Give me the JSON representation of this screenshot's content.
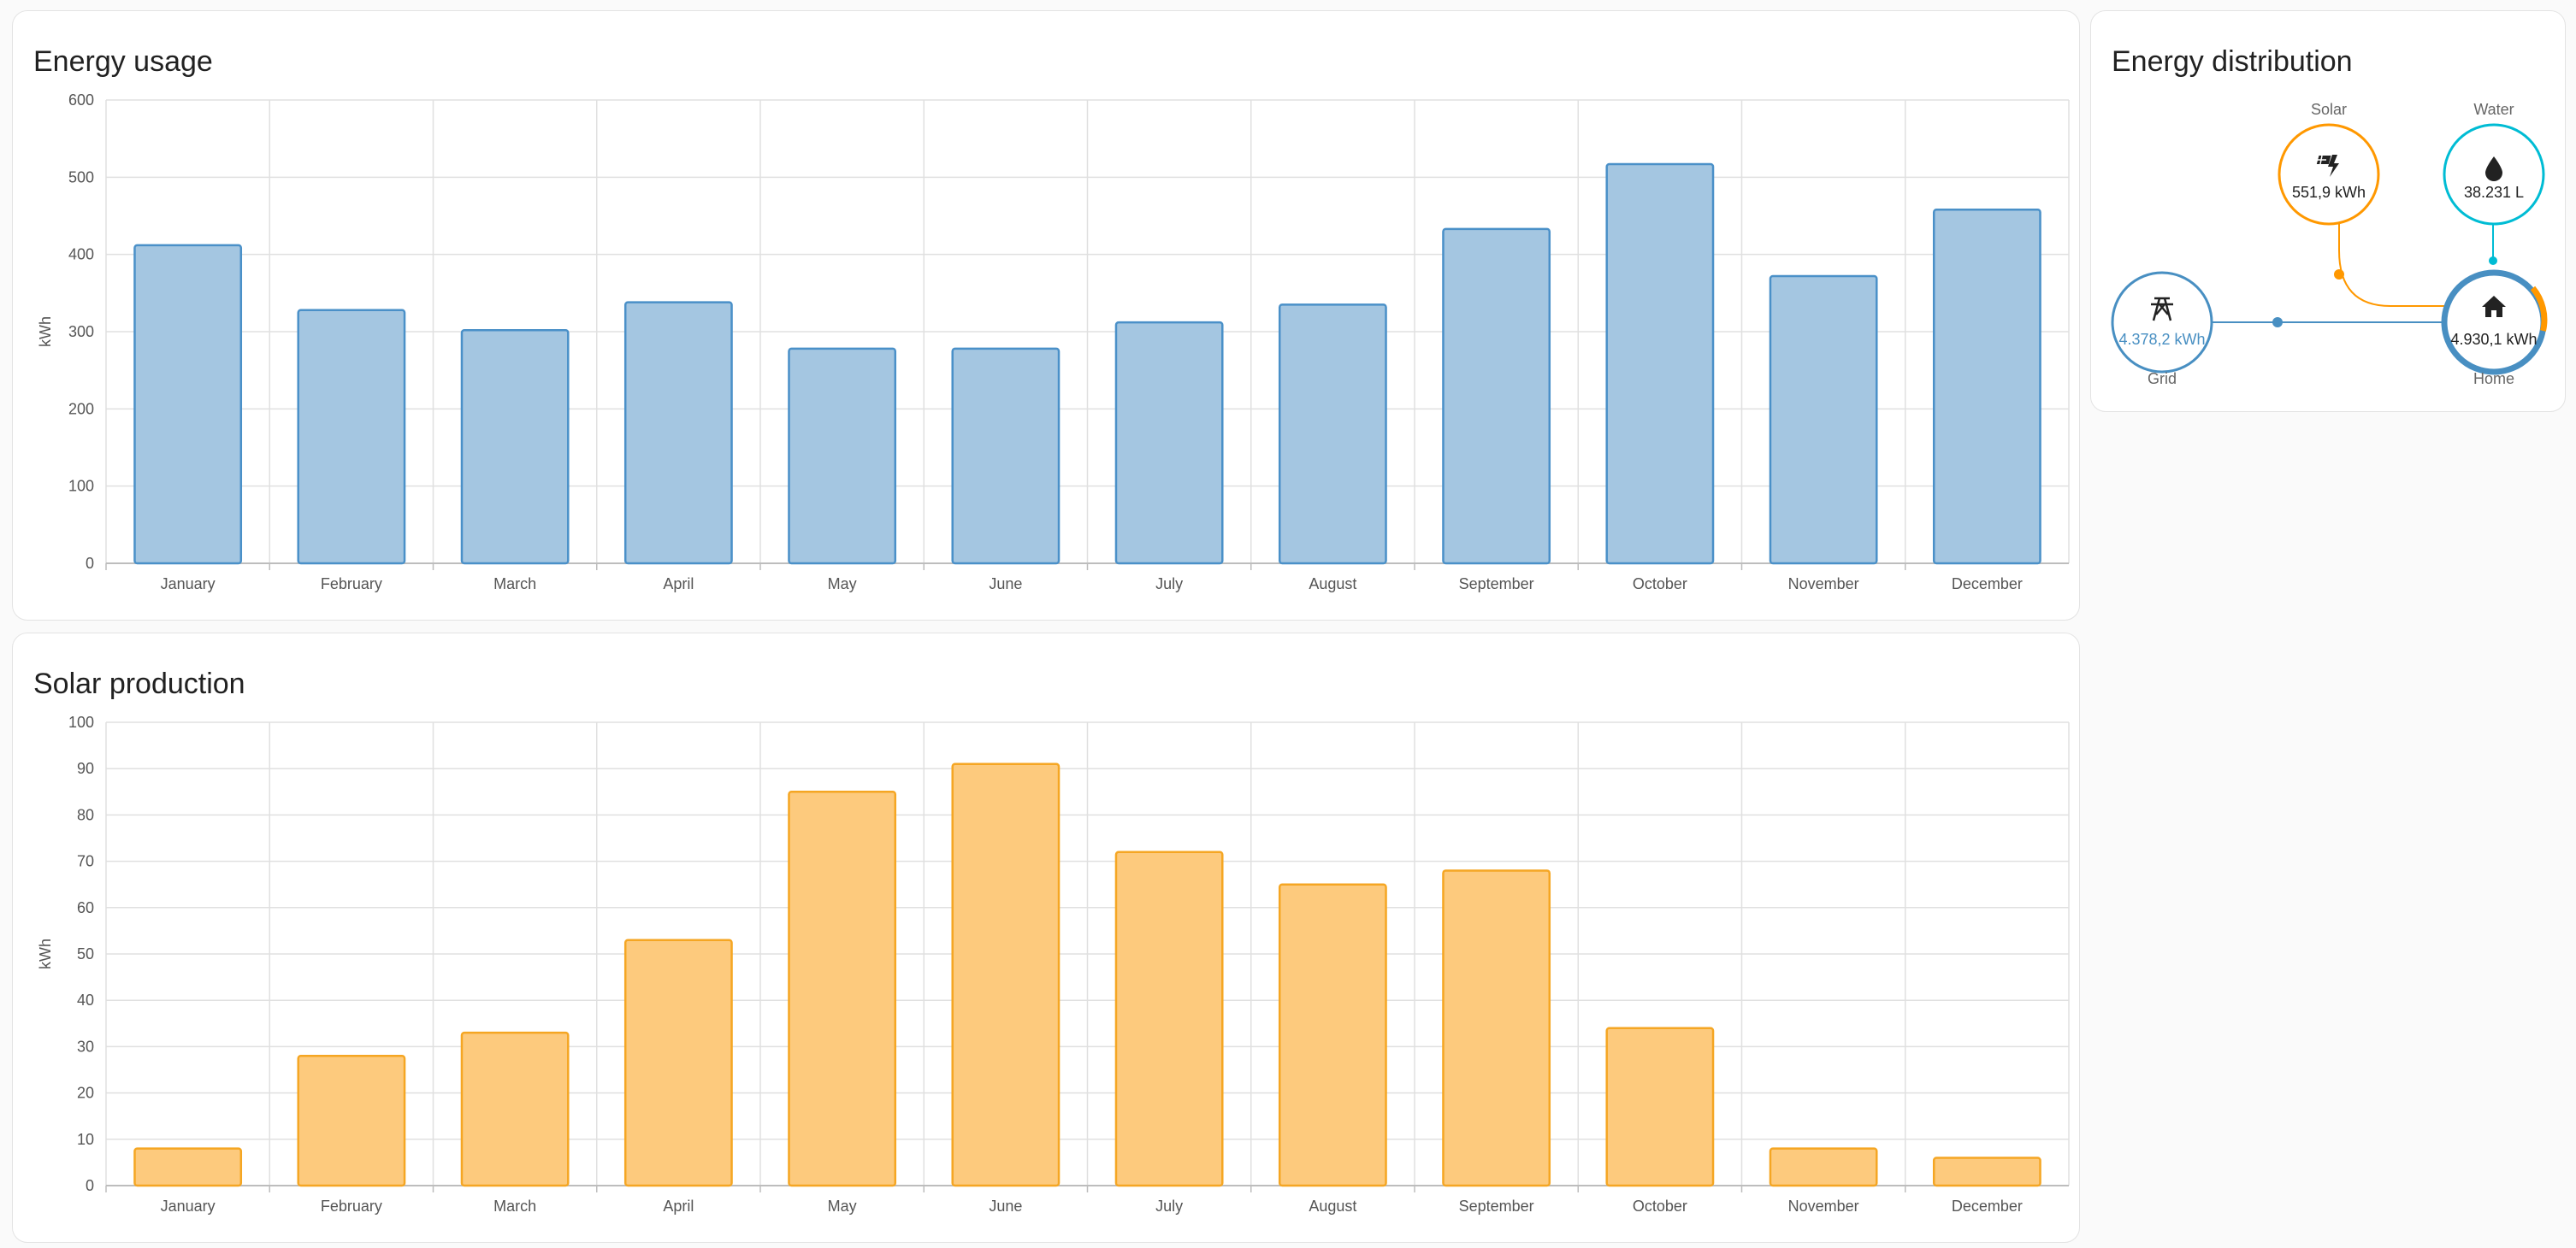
{
  "usage": {
    "title": "Energy usage",
    "chart_data": {
      "type": "bar",
      "title": "Energy usage",
      "ylabel": "kWh",
      "ylim": [
        0,
        600
      ],
      "yticks": [
        0,
        100,
        200,
        300,
        400,
        500,
        600
      ],
      "categories": [
        "January",
        "February",
        "March",
        "April",
        "May",
        "June",
        "July",
        "August",
        "September",
        "October",
        "November",
        "December"
      ],
      "values": [
        412,
        328,
        302,
        338,
        278,
        278,
        312,
        335,
        433,
        517,
        372,
        458
      ],
      "color": "#4a90c8",
      "fill": "#a4c6e1",
      "grid": true
    }
  },
  "solar": {
    "title": "Solar production",
    "chart_data": {
      "type": "bar",
      "title": "Solar production",
      "ylabel": "kWh",
      "ylim": [
        0,
        100
      ],
      "yticks": [
        0,
        10,
        20,
        30,
        40,
        50,
        60,
        70,
        80,
        90,
        100
      ],
      "categories": [
        "January",
        "February",
        "March",
        "April",
        "May",
        "June",
        "July",
        "August",
        "September",
        "October",
        "November",
        "December"
      ],
      "values": [
        8,
        28,
        33,
        53,
        85,
        91,
        72,
        65,
        68,
        34,
        8,
        6
      ],
      "color": "#f5a623",
      "fill": "#fdca7d",
      "grid": true
    }
  },
  "distribution": {
    "title": "Energy distribution",
    "solar": {
      "label": "Solar",
      "value": "551,9 kWh",
      "icon": "solar-power-icon",
      "color": "#ff9800"
    },
    "water": {
      "label": "Water",
      "value": "38.231 L",
      "icon": "water-drop-icon",
      "color": "#00bcd4"
    },
    "grid": {
      "label": "Grid",
      "value": "4.378,2 kWh",
      "icon": "transmission-tower-icon",
      "color": "#488fc2"
    },
    "home": {
      "label": "Home",
      "value": "4.930,1 kWh",
      "icon": "home-icon",
      "color": "#488fc2"
    }
  }
}
